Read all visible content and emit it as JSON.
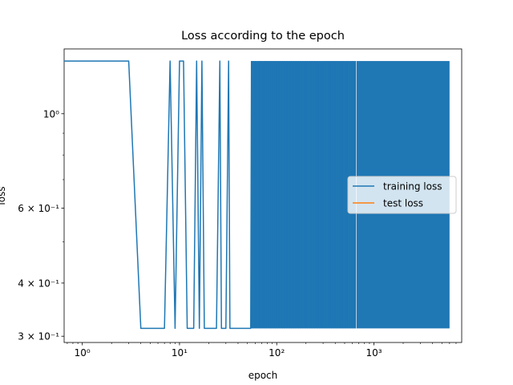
{
  "chart_data": {
    "type": "line",
    "title": "Loss according to the epoch",
    "xlabel": "epoch",
    "ylabel": "loss",
    "x_scale": "log",
    "y_scale": "log",
    "xlim": [
      0.65,
      8000
    ],
    "ylim": [
      0.29,
      1.42
    ],
    "x_ticks": [
      {
        "value": 1,
        "label": "10⁰"
      },
      {
        "value": 10,
        "label": "10¹"
      },
      {
        "value": 100,
        "label": "10²"
      },
      {
        "value": 1000,
        "label": "10³"
      }
    ],
    "y_ticks": [
      {
        "value": 0.3,
        "label": "3 × 10⁻¹"
      },
      {
        "value": 0.4,
        "label": "4 × 10⁻¹"
      },
      {
        "value": 0.6,
        "label": "6 × 10⁻¹"
      },
      {
        "value": 1.0,
        "label": "10⁰"
      }
    ],
    "grid": false,
    "legend_position": "center-right",
    "series": [
      {
        "name": "training loss",
        "color": "#1f77b4",
        "high": 1.33,
        "low": 0.313,
        "last_epoch": 6000,
        "points": [
          [
            0.65,
            1.33
          ],
          [
            1,
            1.33
          ],
          [
            2,
            1.33
          ],
          [
            3,
            1.33
          ],
          [
            4,
            0.313
          ],
          [
            5,
            0.313
          ],
          [
            6,
            0.313
          ],
          [
            7,
            0.313
          ],
          [
            8,
            1.33
          ],
          [
            9,
            0.313
          ],
          [
            10,
            1.33
          ],
          [
            11,
            1.33
          ],
          [
            12,
            0.313
          ],
          [
            13,
            0.313
          ],
          [
            14,
            0.313
          ],
          [
            15,
            1.33
          ],
          [
            16,
            0.313
          ],
          [
            17,
            1.33
          ],
          [
            18,
            0.313
          ],
          [
            20,
            0.313
          ],
          [
            24,
            0.313
          ],
          [
            26,
            1.33
          ],
          [
            27,
            0.313
          ],
          [
            30,
            0.313
          ],
          [
            32,
            1.33
          ],
          [
            33,
            0.313
          ],
          [
            40,
            0.313
          ],
          [
            50,
            0.313
          ],
          [
            54,
            0.313
          ],
          [
            55,
            1.33
          ]
        ]
      },
      {
        "name": "test loss",
        "color": "#ff7f0e",
        "points": []
      }
    ]
  }
}
